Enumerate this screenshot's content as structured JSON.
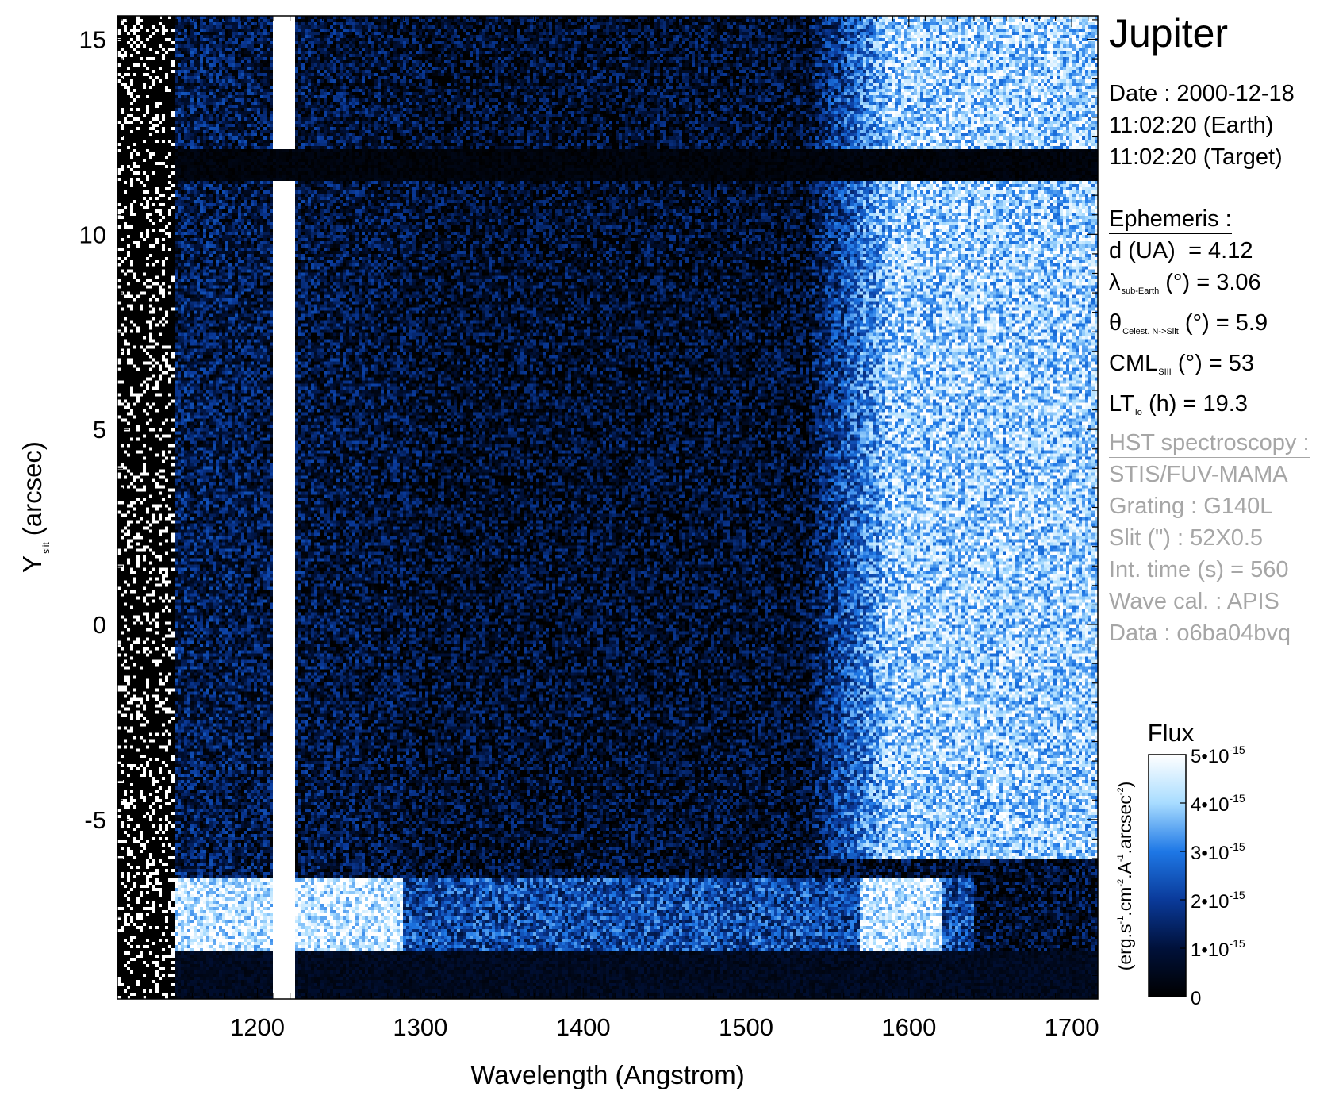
{
  "info_panel": {
    "target": "Jupiter",
    "date_lines": [
      "Date : 2000-12-18",
      "11:02:20 (Earth)",
      "11:02:20 (Target)"
    ],
    "ephemeris": {
      "heading": "Ephemeris :",
      "d_label": "d (UA)",
      "d_value": "= 4.12",
      "lambda_symbol": "λ",
      "lambda_sub": "sub-Earth",
      "lambda_unit": "(°)",
      "lambda_value": "= 3.06",
      "theta_symbol": "θ",
      "theta_sub": "Celest. N->Slit",
      "theta_unit": "(°)",
      "theta_value": "= 5.9",
      "cml_label": "CML",
      "cml_sub": "SIII",
      "cml_unit": "(°)",
      "cml_value": "= 53",
      "lt_label": "LT",
      "lt_sub": "Io",
      "lt_unit": "(h)",
      "lt_value": "= 19.3"
    },
    "hst": {
      "heading": "HST spectroscopy :",
      "lines": [
        "STIS/FUV-MAMA",
        "Grating : G140L",
        "Slit (\") : 52X0.5",
        "Int. time (s) = 560",
        "Wave cal. : APIS",
        "Data : o6ba04bvq"
      ]
    }
  },
  "chart_data": {
    "type": "heatmap",
    "xlabel": "Wavelength (Angstrom)",
    "ylabel": "Y",
    "ylabel_sub": "slit",
    "ylabel_unit": "(arcsec)",
    "xlim": [
      1114,
      1716
    ],
    "ylim": [
      -9.6,
      15.6
    ],
    "x_ticks": [
      1200,
      1300,
      1400,
      1500,
      1600,
      1700
    ],
    "x_tick_labels": [
      "1200",
      "1300",
      "1400",
      "1500",
      "1600",
      "1700"
    ],
    "y_ticks": [
      15,
      10,
      5,
      0,
      -5
    ],
    "y_tick_labels": [
      "15",
      "10",
      "5",
      "0",
      "-5"
    ],
    "colorbar": {
      "title": "Flux",
      "unit_label": "(erg.s-1.cm-2.A-1.arcsec-2)",
      "range": [
        0,
        5e-15
      ],
      "ticks": [
        0,
        1e-15,
        2e-15,
        3e-15,
        4e-15,
        5e-15
      ],
      "tick_labels": [
        "0",
        "1•10-15",
        "2•10-15",
        "3•10-15",
        "4•10-15",
        "5•10-15"
      ],
      "colors": [
        "#000000",
        "#00113a",
        "#0a3a9a",
        "#1e78e6",
        "#a8dcff",
        "#ffffff"
      ]
    },
    "features": [
      {
        "name": "Lyman-alpha line",
        "x_range": [
          1210,
          1224
        ],
        "y_range": [
          -9.6,
          15.6
        ],
        "level": 1.0
      },
      {
        "name": "slit bar",
        "x_range": [
          1114,
          1716
        ],
        "y_range": [
          11.4,
          12.2
        ],
        "level": 0.0
      },
      {
        "name": "bottom occulted band",
        "x_range": [
          1114,
          1716
        ],
        "y_range": [
          -9.6,
          -8.4
        ],
        "level": 0.05
      },
      {
        "name": "auroral emission band",
        "x_range": [
          1140,
          1640
        ],
        "y_range": [
          -8.4,
          -6.5
        ],
        "level": 0.7
      },
      {
        "name": "reflected sunlight continuum",
        "x_range": [
          1540,
          1716
        ],
        "y_range": [
          -6.0,
          15.6
        ],
        "level": 0.85
      }
    ]
  }
}
